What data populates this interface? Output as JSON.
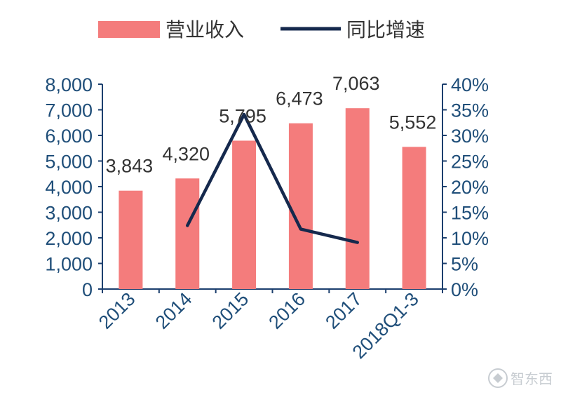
{
  "chart_data": {
    "type": "bar+line",
    "categories": [
      "2013",
      "2014",
      "2015",
      "2016",
      "2017",
      "2018Q1-3"
    ],
    "series": [
      {
        "name": "营业收入",
        "type": "bar",
        "axis": "left",
        "values": [
          3843,
          4320,
          5795,
          6473,
          7063,
          5552
        ],
        "labels": [
          "3,843",
          "4,320",
          "5,795",
          "6,473",
          "7,063",
          "5,552"
        ]
      },
      {
        "name": "同比增速",
        "type": "line",
        "axis": "right",
        "values": [
          null,
          12.4,
          34.1,
          11.7,
          9.1,
          null
        ]
      }
    ],
    "left_axis": {
      "ylim": [
        0,
        8000
      ],
      "ticks": [
        0,
        1000,
        2000,
        3000,
        4000,
        5000,
        6000,
        7000,
        8000
      ],
      "tick_labels": [
        "0",
        "1,000",
        "2,000",
        "3,000",
        "4,000",
        "5,000",
        "6,000",
        "7,000",
        "8,000"
      ]
    },
    "right_axis": {
      "ylim": [
        0,
        40
      ],
      "ticks": [
        0,
        5,
        10,
        15,
        20,
        25,
        30,
        35,
        40
      ],
      "tick_labels": [
        "0%",
        "5%",
        "10%",
        "15%",
        "20%",
        "25%",
        "30%",
        "35%",
        "40%"
      ]
    },
    "legend": {
      "position": "top",
      "entries": [
        "营业收入",
        "同比增速"
      ]
    },
    "grid": false
  },
  "colors": {
    "bar": "#f47c7c",
    "line": "#15294d",
    "axis": "#1c3f6e",
    "text": "#1f4e79",
    "label": "#333333"
  },
  "watermark": {
    "text": "智东西"
  }
}
